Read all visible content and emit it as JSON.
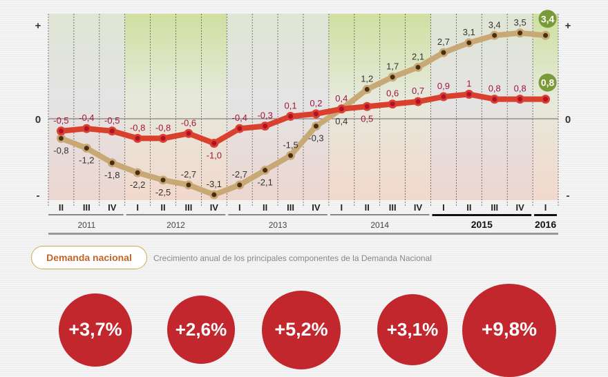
{
  "chart_data": {
    "type": "line",
    "title": "",
    "xlabel": "",
    "ylabel": "",
    "y_axis_labels": {
      "top": "+",
      "zero": "0",
      "bottom": "-"
    },
    "ylim": [
      -3.3,
      4.2
    ],
    "quarters": [
      "II",
      "III",
      "IV",
      "I",
      "II",
      "III",
      "IV",
      "I",
      "II",
      "III",
      "IV",
      "I",
      "II",
      "III",
      "IV",
      "I",
      "II",
      "III",
      "IV",
      "I"
    ],
    "years": [
      {
        "label": "2011",
        "quarters": 3,
        "bold": false
      },
      {
        "label": "2012",
        "quarters": 4,
        "bold": false
      },
      {
        "label": "2013",
        "quarters": 4,
        "bold": false
      },
      {
        "label": "2014",
        "quarters": 4,
        "bold": false
      },
      {
        "label": "2015",
        "quarters": 4,
        "bold": true
      },
      {
        "label": "2016",
        "quarters": 1,
        "bold": true
      }
    ],
    "series": [
      {
        "name": "tan",
        "color": "#c8a875",
        "dot": "#4a2e12",
        "label_color": "#333333",
        "values": [
          -0.8,
          -1.2,
          -1.8,
          -2.2,
          -2.5,
          -2.7,
          -3.1,
          -2.7,
          -2.1,
          -1.5,
          -0.3,
          0.4,
          1.2,
          1.7,
          2.1,
          2.7,
          3.1,
          3.4,
          3.5,
          3.4
        ],
        "labels": [
          "-0,8",
          "-1,2",
          "-1,8",
          "-2,2",
          "-2,5",
          "-2,7",
          "-3,1",
          "-2,7",
          "-2,1",
          "-1,5",
          "-0,3",
          "0,4",
          "1,2",
          "1,7",
          "2,1",
          "2,7",
          "3,1",
          "3,4",
          "3,5",
          "3,4"
        ],
        "label_pos": [
          "below",
          "below",
          "below",
          "below",
          "below",
          "above",
          "above",
          "above",
          "below",
          "above",
          "below",
          "below",
          "above",
          "above",
          "above",
          "above",
          "above",
          "above",
          "above",
          "badge"
        ]
      },
      {
        "name": "red",
        "color": "#d9412e",
        "dot": "#b0102a",
        "label_color": "#a3153f",
        "values": [
          -0.5,
          -0.4,
          -0.5,
          -0.8,
          -0.8,
          -0.6,
          -1.0,
          -0.4,
          -0.3,
          0.1,
          0.2,
          0.4,
          0.5,
          0.6,
          0.7,
          0.9,
          1.0,
          0.8,
          0.8,
          0.8
        ],
        "labels": [
          "-0,5",
          "-0,4",
          "-0,5",
          "-0,8",
          "-0,8",
          "-0,6",
          "-1,0",
          "-0,4",
          "-0,3",
          "0,1",
          "0,2",
          "0,4",
          "0,5",
          "0,6",
          "0,7",
          "0,9",
          "1",
          "0,8",
          "0,8",
          "0,8"
        ],
        "label_pos": [
          "above",
          "above",
          "above",
          "above",
          "above",
          "above",
          "below",
          "above",
          "above",
          "above",
          "above",
          "above",
          "below",
          "above",
          "above",
          "above",
          "above",
          "above",
          "above",
          "badge"
        ]
      }
    ],
    "badge_color": "#7a9a3a"
  },
  "section": {
    "badge": "Demanda nacional",
    "subtitle": "Crecimiento anual de los principales componentes de la Demanda Nacional"
  },
  "bubbles": [
    {
      "value": 3.7,
      "label": "+3,7%"
    },
    {
      "value": 2.6,
      "label": "+2,6%"
    },
    {
      "value": 5.2,
      "label": "+5,2%"
    },
    {
      "value": 3.1,
      "label": "+3,1%"
    },
    {
      "value": 9.8,
      "label": "+9,8%"
    }
  ]
}
